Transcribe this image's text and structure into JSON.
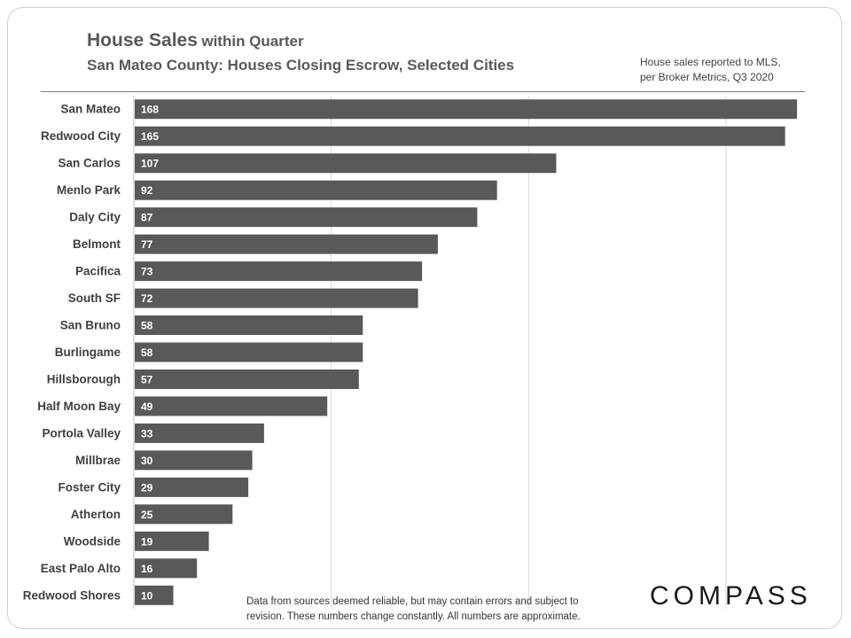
{
  "header": {
    "title_main": "House Sales",
    "title_rest": "within Quarter",
    "subtitle": "San Mateo County: Houses Closing Escrow, Selected Cities",
    "note_line1": "House sales reported to MLS,",
    "note_line2": "per Broker Metrics, Q3 2020"
  },
  "footer": {
    "disclaimer_line1": "Data from sources deemed reliable, but may contain errors and subject to",
    "disclaimer_line2": "revision. These numbers change constantly.  All numbers are approximate.",
    "logo": "COMPASS"
  },
  "colors": {
    "bar": "#595959",
    "label": "#404040",
    "grid": "#d9d9d9",
    "axis": "#bfbfbf"
  },
  "chart_data": {
    "type": "bar",
    "orientation": "horizontal",
    "categories": [
      "San Mateo",
      "Redwood City",
      "San Carlos",
      "Menlo Park",
      "Daly City",
      "Belmont",
      "Pacifica",
      "South SF",
      "San Bruno",
      "Burlingame",
      "Hillsborough",
      "Half Moon Bay",
      "Portola Valley",
      "Millbrae",
      "Foster City",
      "Atherton",
      "Woodside",
      "East Palo Alto",
      "Redwood Shores"
    ],
    "values": [
      168,
      165,
      107,
      92,
      87,
      77,
      73,
      72,
      58,
      58,
      57,
      49,
      33,
      30,
      29,
      25,
      19,
      16,
      10
    ],
    "data_labels": true,
    "xlim": [
      0,
      170
    ],
    "grid": true,
    "title": "House Sales within Quarter",
    "xlabel": "",
    "ylabel": ""
  }
}
